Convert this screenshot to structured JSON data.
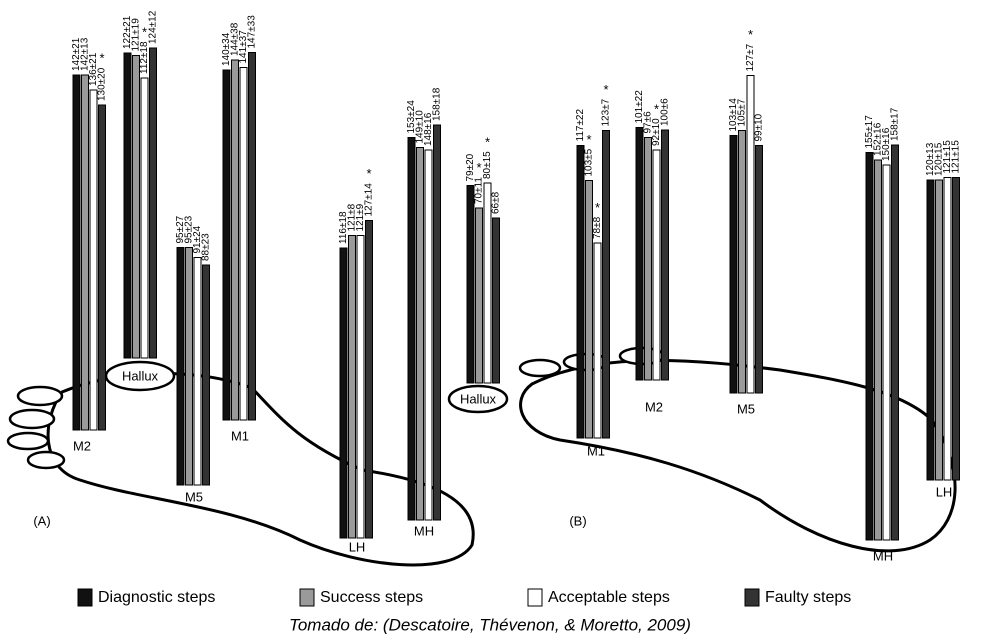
{
  "marker": "*",
  "legend": [
    {
      "name": "Diagnostic steps",
      "color": "#111111"
    },
    {
      "name": "Success steps",
      "color": "#9a9a9a"
    },
    {
      "name": "Acceptable steps",
      "color": "#ffffff"
    },
    {
      "name": "Faulty steps",
      "color": "#333333"
    }
  ],
  "caption": "Tomado de: (Descatoire, Thévenon, & Moretto, 2009)",
  "panels": [
    {
      "label": "(A)",
      "groups": [
        {
          "name": "M2",
          "values": [
            142,
            142,
            136,
            130
          ],
          "value_labels": [
            "142±21",
            "142±13",
            "136±21",
            "130±20"
          ],
          "significant": [
            false,
            false,
            false,
            true
          ]
        },
        {
          "name": "Hallux",
          "values": [
            122,
            121,
            112,
            124
          ],
          "value_labels": [
            "122±21",
            "121±19",
            "112±18",
            "124±12"
          ],
          "significant": [
            false,
            false,
            true,
            false
          ]
        },
        {
          "name": "M5",
          "values": [
            95,
            95,
            91,
            88
          ],
          "value_labels": [
            "95±27",
            "95±23",
            "91±24",
            "88±23"
          ],
          "significant": [
            false,
            false,
            false,
            false
          ]
        },
        {
          "name": "M1",
          "values": [
            140,
            144,
            141,
            147
          ],
          "value_labels": [
            "140±34",
            "144±38",
            "141±37",
            "147±33"
          ],
          "significant": [
            false,
            false,
            false,
            false
          ]
        },
        {
          "name": "LH",
          "values": [
            116,
            121,
            121,
            127
          ],
          "value_labels": [
            "116±18",
            "121±8",
            "121±9",
            "127±14"
          ],
          "significant": [
            false,
            false,
            false,
            true
          ]
        },
        {
          "name": "MH",
          "values": [
            153,
            149,
            148,
            158
          ],
          "value_labels": [
            "153±24",
            "149±10",
            "148±16",
            "158±18"
          ],
          "significant": [
            false,
            false,
            false,
            false
          ]
        }
      ]
    },
    {
      "label": "(B)",
      "groups": [
        {
          "name": "Hallux",
          "values": [
            79,
            70,
            80,
            66
          ],
          "value_labels": [
            "79±20",
            "70±11",
            "80±15",
            "66±8"
          ],
          "significant": [
            false,
            true,
            true,
            false
          ]
        },
        {
          "name": "M1",
          "values": [
            117,
            103,
            78,
            123
          ],
          "value_labels": [
            "117±22",
            "103±5",
            "78±8",
            "123±7"
          ],
          "significant": [
            false,
            true,
            true,
            true
          ]
        },
        {
          "name": "M2",
          "values": [
            101,
            97,
            92,
            100
          ],
          "value_labels": [
            "101±22",
            "97±6",
            "92±10",
            "100±6"
          ],
          "significant": [
            false,
            false,
            true,
            false
          ]
        },
        {
          "name": "M5",
          "values": [
            103,
            105,
            127,
            99
          ],
          "value_labels": [
            "103±14",
            "105±7",
            "127±7",
            "99±10"
          ],
          "significant": [
            false,
            false,
            true,
            false
          ]
        },
        {
          "name": "MH",
          "values": [
            155,
            152,
            150,
            158
          ],
          "value_labels": [
            "155±17",
            "152±16",
            "150±16",
            "158±17"
          ],
          "significant": [
            false,
            false,
            false,
            false
          ]
        },
        {
          "name": "LH",
          "values": [
            120,
            120,
            121,
            121
          ],
          "value_labels": [
            "120±13",
            "120±15",
            "121±15",
            "121±15"
          ],
          "significant": [
            false,
            false,
            false,
            false
          ]
        }
      ]
    }
  ]
}
